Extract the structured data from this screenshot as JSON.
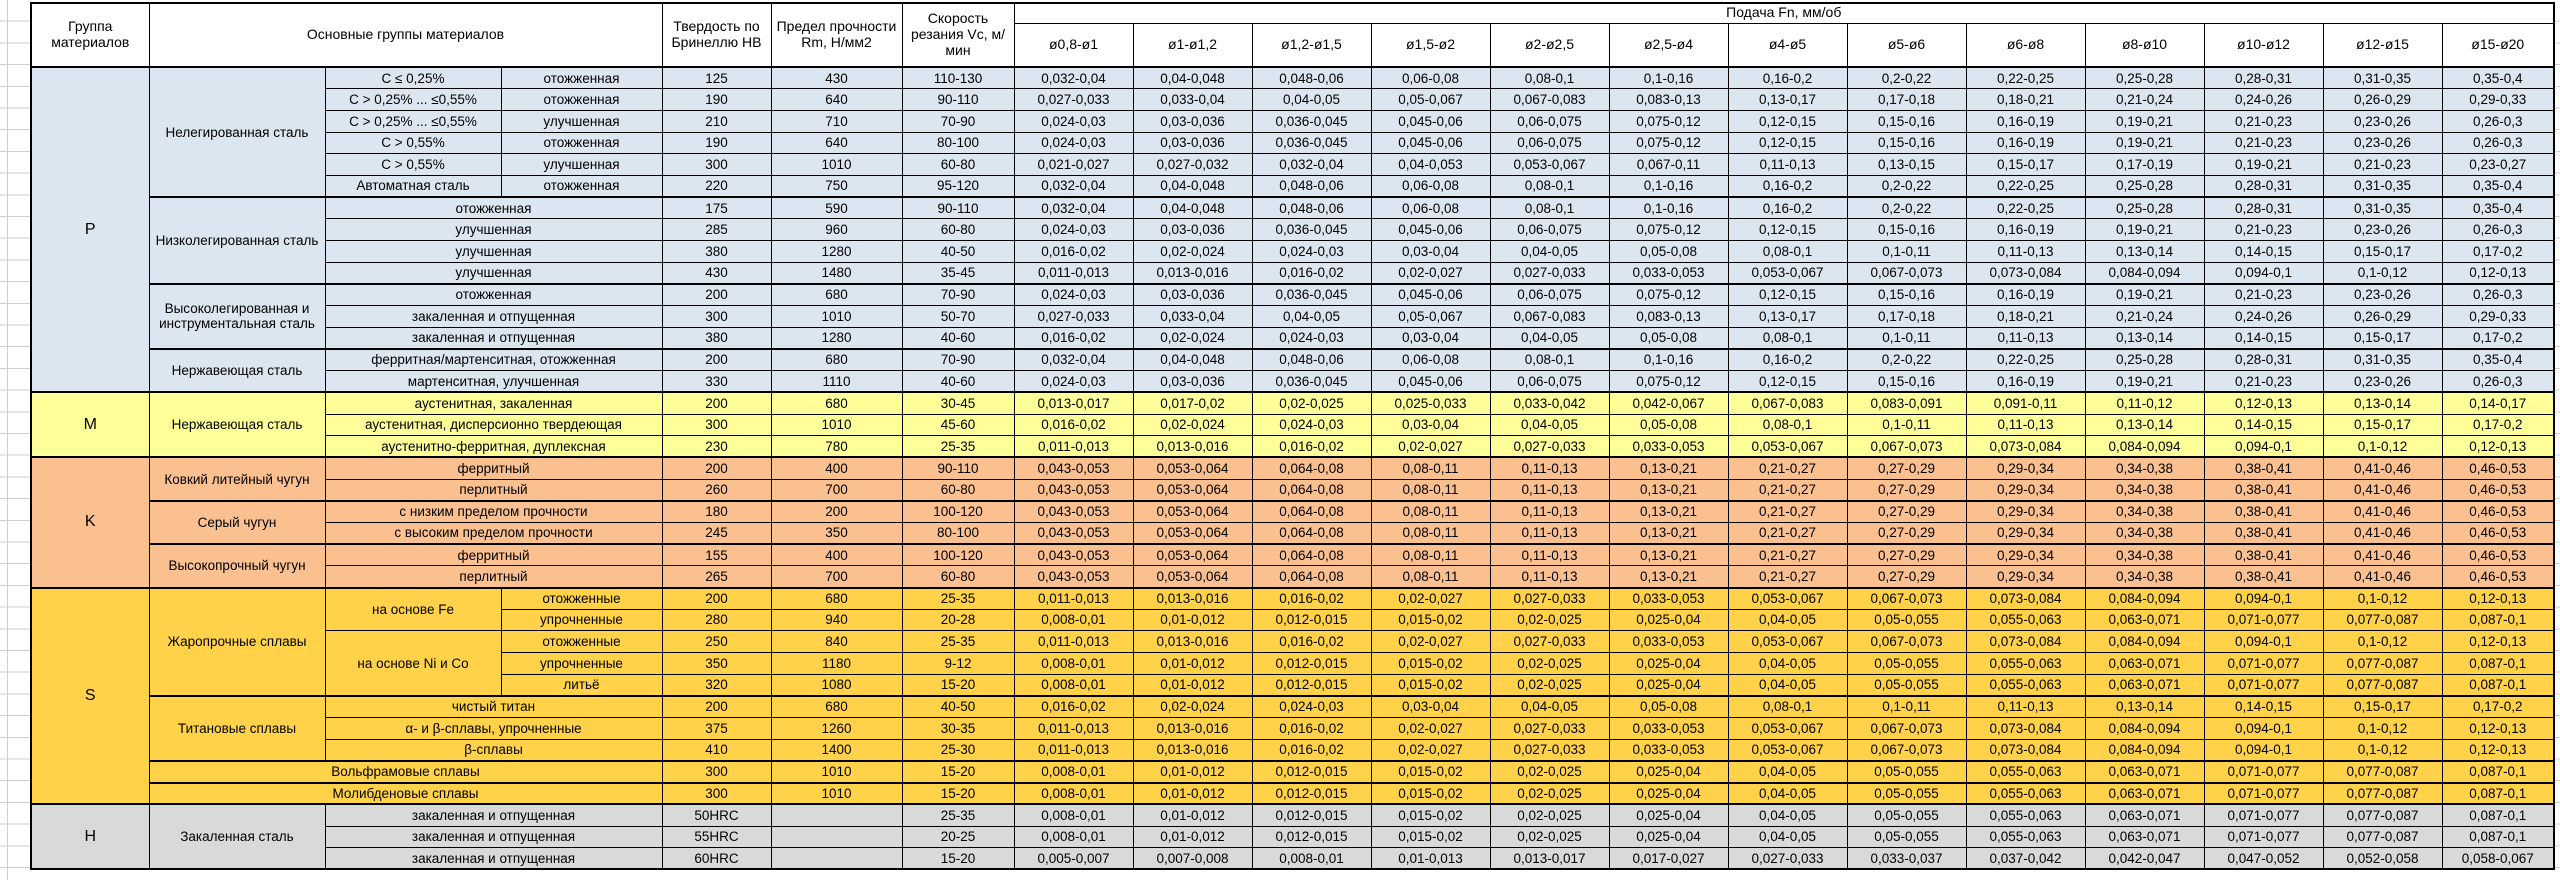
{
  "header": {
    "group_col": "Группа материалов",
    "materials_col": "Основные группы материалов",
    "hardness_col": "Твердость по Бринеллю HB",
    "strength_col": "Предел прочности Rm, Н/мм2",
    "speed_col": "Скорость резания Vc, м/мин",
    "feed_col": "Подача Fn, мм/об",
    "diameters": [
      "ø0,8-ø1",
      "ø1-ø1,2",
      "ø1,2-ø1,5",
      "ø1,5-ø2",
      "ø2-ø2,5",
      "ø2,5-ø4",
      "ø4-ø5",
      "ø5-ø6",
      "ø6-ø8",
      "ø8-ø10",
      "ø10-ø12",
      "ø12-ø15",
      "ø15-ø20"
    ]
  },
  "colors": {
    "p": "#dce6f1",
    "m": "#ffff99",
    "k": "#fac090",
    "s": "#ffd24a",
    "h": "#d9d9d9",
    "border": "#000000",
    "header_bg": "#ffffff"
  },
  "feed_patterns": {
    "A": [
      "0,032-0,04",
      "0,04-0,048",
      "0,048-0,06",
      "0,06-0,08",
      "0,08-0,1",
      "0,1-0,16",
      "0,16-0,2",
      "0,2-0,22",
      "0,22-0,25",
      "0,25-0,28",
      "0,28-0,31",
      "0,31-0,35",
      "0,35-0,4"
    ],
    "B": [
      "0,027-0,033",
      "0,033-0,04",
      "0,04-0,05",
      "0,05-0,067",
      "0,067-0,083",
      "0,083-0,13",
      "0,13-0,17",
      "0,17-0,18",
      "0,18-0,21",
      "0,21-0,24",
      "0,24-0,26",
      "0,26-0,29",
      "0,29-0,33"
    ],
    "C": [
      "0,024-0,03",
      "0,03-0,036",
      "0,036-0,045",
      "0,045-0,06",
      "0,06-0,075",
      "0,075-0,12",
      "0,12-0,15",
      "0,15-0,16",
      "0,16-0,19",
      "0,19-0,21",
      "0,21-0,23",
      "0,23-0,26",
      "0,26-0,3"
    ],
    "D": [
      "0,021-0,027",
      "0,027-0,032",
      "0,032-0,04",
      "0,04-0,053",
      "0,053-0,067",
      "0,067-0,11",
      "0,11-0,13",
      "0,13-0,15",
      "0,15-0,17",
      "0,17-0,19",
      "0,19-0,21",
      "0,21-0,23",
      "0,23-0,27"
    ],
    "E": [
      "0,016-0,02",
      "0,02-0,024",
      "0,024-0,03",
      "0,03-0,04",
      "0,04-0,05",
      "0,05-0,08",
      "0,08-0,1",
      "0,1-0,11",
      "0,11-0,13",
      "0,13-0,14",
      "0,14-0,15",
      "0,15-0,17",
      "0,17-0,2"
    ],
    "F": [
      "0,011-0,013",
      "0,013-0,016",
      "0,016-0,02",
      "0,02-0,027",
      "0,027-0,033",
      "0,033-0,053",
      "0,053-0,067",
      "0,067-0,073",
      "0,073-0,084",
      "0,084-0,094",
      "0,094-0,1",
      "0,1-0,12",
      "0,12-0,13"
    ],
    "G": [
      "0,013-0,017",
      "0,017-0,02",
      "0,02-0,025",
      "0,025-0,033",
      "0,033-0,042",
      "0,042-0,067",
      "0,067-0,083",
      "0,083-0,091",
      "0,091-0,11",
      "0,11-0,12",
      "0,12-0,13",
      "0,13-0,14",
      "0,14-0,17"
    ],
    "K": [
      "0,043-0,053",
      "0,053-0,064",
      "0,064-0,08",
      "0,08-0,11",
      "0,11-0,13",
      "0,13-0,21",
      "0,21-0,27",
      "0,27-0,29",
      "0,29-0,34",
      "0,34-0,38",
      "0,38-0,41",
      "0,41-0,46",
      "0,46-0,53"
    ],
    "H": [
      "0,008-0,01",
      "0,01-0,012",
      "0,012-0,015",
      "0,015-0,02",
      "0,02-0,025",
      "0,025-0,04",
      "0,04-0,05",
      "0,05-0,055",
      "0,055-0,063",
      "0,063-0,071",
      "0,071-0,077",
      "0,077-0,087",
      "0,087-0,1"
    ],
    "Z": [
      "0,005-0,007",
      "0,007-0,008",
      "0,008-0,01",
      "0,01-0,013",
      "0,013-0,017",
      "0,017-0,027",
      "0,027-0,033",
      "0,033-0,037",
      "0,037-0,042",
      "0,042-0,047",
      "0,047-0,052",
      "0,052-0,058",
      "0,058-0,067"
    ]
  },
  "groups": [
    {
      "code": "P",
      "color": "p",
      "rows": [
        {
          "desc": [
            {
              "text": "Нелегированная сталь",
              "rs": 6
            },
            {
              "text": "C ≤ 0,25%"
            },
            {
              "text": "отожженная"
            }
          ],
          "hb": "125",
          "rm": "430",
          "vc": "110-130",
          "feeds": "A"
        },
        {
          "desc": [
            {
              "text": "C > 0,25% ... ≤0,55%"
            },
            {
              "text": "отожженная"
            }
          ],
          "hb": "190",
          "rm": "640",
          "vc": "90-110",
          "feeds": "B"
        },
        {
          "desc": [
            {
              "text": "C > 0,25% ... ≤0,55%"
            },
            {
              "text": "улучшенная"
            }
          ],
          "hb": "210",
          "rm": "710",
          "vc": "70-90",
          "feeds": "C"
        },
        {
          "desc": [
            {
              "text": "C > 0,55%"
            },
            {
              "text": "отожженная"
            }
          ],
          "hb": "190",
          "rm": "640",
          "vc": "80-100",
          "feeds": "C"
        },
        {
          "desc": [
            {
              "text": "C > 0,55%"
            },
            {
              "text": "улучшенная"
            }
          ],
          "hb": "300",
          "rm": "1010",
          "vc": "60-80",
          "feeds": "D"
        },
        {
          "desc": [
            {
              "text": "Автоматная сталь"
            },
            {
              "text": "отожженная"
            }
          ],
          "hb": "220",
          "rm": "750",
          "vc": "95-120",
          "feeds": "A"
        },
        {
          "sec": true,
          "desc": [
            {
              "text": "Низколегированная сталь",
              "rs": 4
            },
            {
              "text": "отожженная",
              "cs": 2
            }
          ],
          "hb": "175",
          "rm": "590",
          "vc": "90-110",
          "feeds": "A"
        },
        {
          "desc": [
            {
              "text": "улучшенная",
              "cs": 2
            }
          ],
          "hb": "285",
          "rm": "960",
          "vc": "60-80",
          "feeds": "C"
        },
        {
          "desc": [
            {
              "text": "улучшенная",
              "cs": 2
            }
          ],
          "hb": "380",
          "rm": "1280",
          "vc": "40-50",
          "feeds": "E"
        },
        {
          "desc": [
            {
              "text": "улучшенная",
              "cs": 2
            }
          ],
          "hb": "430",
          "rm": "1480",
          "vc": "35-45",
          "feeds": "F"
        },
        {
          "sec": true,
          "desc": [
            {
              "text": "Высоколегированная и инструментальная сталь",
              "rs": 3
            },
            {
              "text": "отожженная",
              "cs": 2
            }
          ],
          "hb": "200",
          "rm": "680",
          "vc": "70-90",
          "feeds": "C"
        },
        {
          "desc": [
            {
              "text": "закаленная и отпущенная",
              "cs": 2
            }
          ],
          "hb": "300",
          "rm": "1010",
          "vc": "50-70",
          "feeds": "B"
        },
        {
          "desc": [
            {
              "text": "закаленная и отпущенная",
              "cs": 2
            }
          ],
          "hb": "380",
          "rm": "1280",
          "vc": "40-60",
          "feeds": "E"
        },
        {
          "sec": true,
          "desc": [
            {
              "text": "Нержавеющая сталь",
              "rs": 2
            },
            {
              "text": "ферритная/мартенситная, отожженная",
              "cs": 2
            }
          ],
          "hb": "200",
          "rm": "680",
          "vc": "70-90",
          "feeds": "A"
        },
        {
          "desc": [
            {
              "text": "мартенситная, улучшенная",
              "cs": 2
            }
          ],
          "hb": "330",
          "rm": "1110",
          "vc": "40-60",
          "feeds": "C"
        }
      ]
    },
    {
      "code": "M",
      "color": "m",
      "rows": [
        {
          "desc": [
            {
              "text": "Нержавеющая сталь",
              "rs": 3
            },
            {
              "text": "аустенитная, закаленная",
              "cs": 2
            }
          ],
          "hb": "200",
          "rm": "680",
          "vc": "30-45",
          "feeds": "G"
        },
        {
          "desc": [
            {
              "text": "аустенитная, дисперсионно твердеющая",
              "cs": 2
            }
          ],
          "hb": "300",
          "rm": "1010",
          "vc": "45-60",
          "feeds": "E"
        },
        {
          "desc": [
            {
              "text": "аустенитно-ферритная, дуплексная",
              "cs": 2
            }
          ],
          "hb": "230",
          "rm": "780",
          "vc": "25-35",
          "feeds": "F"
        }
      ]
    },
    {
      "code": "K",
      "color": "k",
      "rows": [
        {
          "desc": [
            {
              "text": "Ковкий литейный чугун",
              "rs": 2
            },
            {
              "text": "ферритный",
              "cs": 2
            }
          ],
          "hb": "200",
          "rm": "400",
          "vc": "90-110",
          "feeds": "K"
        },
        {
          "desc": [
            {
              "text": "перлитный",
              "cs": 2
            }
          ],
          "hb": "260",
          "rm": "700",
          "vc": "60-80",
          "feeds": "K"
        },
        {
          "sec": true,
          "desc": [
            {
              "text": "Серый чугун",
              "rs": 2
            },
            {
              "text": "с низким пределом прочности",
              "cs": 2
            }
          ],
          "hb": "180",
          "rm": "200",
          "vc": "100-120",
          "feeds": "K"
        },
        {
          "desc": [
            {
              "text": "с высоким пределом прочности",
              "cs": 2
            }
          ],
          "hb": "245",
          "rm": "350",
          "vc": "80-100",
          "feeds": "K"
        },
        {
          "sec": true,
          "desc": [
            {
              "text": "Высокопрочный чугун",
              "rs": 2
            },
            {
              "text": "ферритный",
              "cs": 2
            }
          ],
          "hb": "155",
          "rm": "400",
          "vc": "100-120",
          "feeds": "K"
        },
        {
          "desc": [
            {
              "text": "перлитный",
              "cs": 2
            }
          ],
          "hb": "265",
          "rm": "700",
          "vc": "60-80",
          "feeds": "K"
        }
      ]
    },
    {
      "code": "S",
      "color": "s",
      "rows": [
        {
          "desc": [
            {
              "text": "Жаропрочные сплавы",
              "rs": 5
            },
            {
              "text": "на основе Fe",
              "rs": 2
            },
            {
              "text": "отожженные"
            }
          ],
          "hb": "200",
          "rm": "680",
          "vc": "25-35",
          "feeds": "F"
        },
        {
          "desc": [
            {
              "text": "упрочненные"
            }
          ],
          "hb": "280",
          "rm": "940",
          "vc": "20-28",
          "feeds": "H"
        },
        {
          "desc": [
            {
              "text": "на основе Ni и Co",
              "rs": 3
            },
            {
              "text": "отожженные"
            }
          ],
          "hb": "250",
          "rm": "840",
          "vc": "25-35",
          "feeds": "F"
        },
        {
          "desc": [
            {
              "text": "упрочненные"
            }
          ],
          "hb": "350",
          "rm": "1180",
          "vc": "9-12",
          "feeds": "H"
        },
        {
          "desc": [
            {
              "text": "литьё"
            }
          ],
          "hb": "320",
          "rm": "1080",
          "vc": "15-20",
          "feeds": "H"
        },
        {
          "sec": true,
          "desc": [
            {
              "text": "Титановые сплавы",
              "rs": 3
            },
            {
              "text": "чистый титан",
              "cs": 2
            }
          ],
          "hb": "200",
          "rm": "680",
          "vc": "40-50",
          "feeds": "E"
        },
        {
          "desc": [
            {
              "text": "α- и β-сплавы, упрочненные",
              "cs": 2
            }
          ],
          "hb": "375",
          "rm": "1260",
          "vc": "30-35",
          "feeds": "F"
        },
        {
          "desc": [
            {
              "text": "β-сплавы",
              "cs": 2
            }
          ],
          "hb": "410",
          "rm": "1400",
          "vc": "25-30",
          "feeds": "F"
        },
        {
          "sec": true,
          "desc": [
            {
              "text": "Вольфрамовые сплавы",
              "cs": 3
            }
          ],
          "hb": "300",
          "rm": "1010",
          "vc": "15-20",
          "feeds": "H"
        },
        {
          "sec": true,
          "desc": [
            {
              "text": "Молибденовые сплавы",
              "cs": 3
            }
          ],
          "hb": "300",
          "rm": "1010",
          "vc": "15-20",
          "feeds": "H"
        }
      ]
    },
    {
      "code": "H",
      "color": "h",
      "rows": [
        {
          "desc": [
            {
              "text": "Закаленная сталь",
              "rs": 3
            },
            {
              "text": "закаленная и отпущенная",
              "cs": 2
            }
          ],
          "hb": "50HRC",
          "rm": "",
          "vc": "25-35",
          "feeds": "H"
        },
        {
          "desc": [
            {
              "text": "закаленная и отпущенная",
              "cs": 2
            }
          ],
          "hb": "55HRC",
          "rm": "",
          "vc": "20-25",
          "feeds": "H"
        },
        {
          "desc": [
            {
              "text": "закаленная и отпущенная",
              "cs": 2
            }
          ],
          "hb": "60HRC",
          "rm": "",
          "vc": "15-20",
          "feeds": "Z"
        }
      ]
    }
  ]
}
